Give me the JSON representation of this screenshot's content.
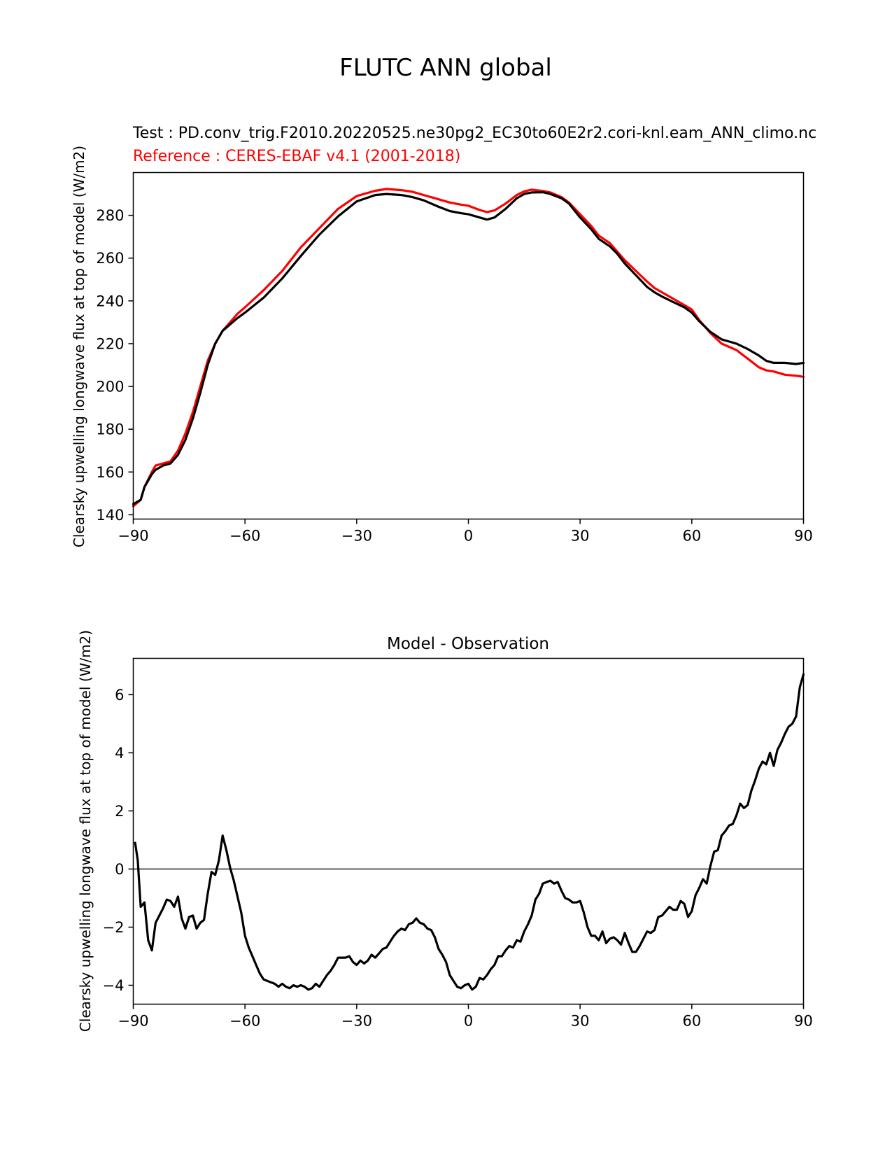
{
  "suptitle": "FLUTC ANN global",
  "chart_data": [
    {
      "type": "line",
      "title_test": "Test : PD.conv_trig.F2010.20220525.ne30pg2_EC30to60E2r2.cori-knl.eam_ANN_climo.nc",
      "title_ref": "Reference : CERES-EBAF v4.1 (2001-2018)",
      "ylabel": "Clearsky upwelling longwave flux at top of model (W/m2)",
      "xlabel": "",
      "xlim": [
        -90,
        90
      ],
      "ylim": [
        138,
        300
      ],
      "xticks": [
        -90,
        -60,
        -30,
        0,
        30,
        60,
        90
      ],
      "xtick_labels": [
        "−90",
        "−60",
        "−30",
        "0",
        "30",
        "60",
        "90"
      ],
      "yticks": [
        140,
        160,
        180,
        200,
        220,
        240,
        260,
        280
      ],
      "ytick_labels": [
        "140",
        "160",
        "180",
        "200",
        "220",
        "240",
        "260",
        "280"
      ],
      "grid": false,
      "series": [
        {
          "color": "#ff0000",
          "x": [
            -90,
            -88,
            -87,
            -85,
            -84,
            -82,
            -80,
            -78,
            -76,
            -74,
            -72,
            -70,
            -68,
            -66,
            -64,
            -62,
            -60,
            -55,
            -50,
            -45,
            -40,
            -35,
            -30,
            -25,
            -22,
            -18,
            -15,
            -12,
            -8,
            -5,
            -2,
            0,
            3,
            5,
            7,
            10,
            13,
            15,
            17,
            20,
            22,
            25,
            27,
            30,
            33,
            35,
            38,
            40,
            42,
            45,
            48,
            50,
            52,
            55,
            58,
            60,
            62,
            65,
            68,
            70,
            72,
            75,
            78,
            80,
            82,
            85,
            88,
            90
          ],
          "y": [
            144,
            147,
            153,
            160,
            163,
            164,
            165,
            170,
            178,
            188,
            200,
            212,
            220,
            226,
            230,
            234,
            237,
            245,
            254,
            265,
            274,
            283,
            289,
            291.5,
            292.3,
            291.8,
            291,
            289.5,
            287.5,
            286,
            285,
            284.5,
            282.5,
            281.5,
            282.3,
            285.5,
            289.5,
            291.2,
            292,
            291.4,
            290.7,
            288.5,
            286,
            280.5,
            275,
            270.5,
            267,
            263,
            259,
            254,
            249,
            246,
            244,
            241,
            238,
            236,
            231,
            225,
            220,
            218.5,
            217,
            213,
            209,
            207.5,
            207,
            205.5,
            205,
            204.5
          ]
        },
        {
          "color": "#000000",
          "x": [
            -90,
            -88,
            -87,
            -85,
            -84,
            -82,
            -80,
            -78,
            -76,
            -74,
            -72,
            -70,
            -68,
            -66,
            -64,
            -62,
            -60,
            -55,
            -50,
            -45,
            -40,
            -35,
            -30,
            -25,
            -22,
            -18,
            -15,
            -12,
            -8,
            -5,
            -2,
            0,
            3,
            5,
            7,
            10,
            13,
            15,
            17,
            20,
            22,
            25,
            27,
            30,
            33,
            35,
            38,
            40,
            42,
            45,
            48,
            50,
            52,
            55,
            58,
            60,
            62,
            65,
            68,
            70,
            72,
            75,
            78,
            80,
            82,
            85,
            88,
            90
          ],
          "y": [
            145,
            147,
            153,
            159,
            161,
            163,
            164,
            168,
            175,
            185,
            197,
            210,
            220,
            226,
            229,
            232,
            234.5,
            241.5,
            250.5,
            261,
            271,
            279.5,
            286.5,
            289.5,
            290,
            289.5,
            288.5,
            287,
            284,
            282,
            281,
            280.5,
            279,
            278,
            279,
            283,
            288,
            290,
            290.7,
            290.8,
            290,
            288,
            285.5,
            279,
            273.5,
            269,
            265.5,
            262,
            257.5,
            252,
            246.5,
            244,
            242,
            239.5,
            237,
            234.5,
            230.5,
            225.5,
            222,
            221,
            220,
            217.5,
            214.5,
            212,
            211,
            211,
            210.5,
            211
          ]
        }
      ]
    },
    {
      "type": "line",
      "title": "Model - Observation",
      "ylabel": "Clearsky upwelling longwave flux at top of model (W/m2)",
      "xlabel": "",
      "xlim": [
        -90,
        90
      ],
      "ylim": [
        -4.65,
        7.25
      ],
      "xticks": [
        -90,
        -60,
        -30,
        0,
        30,
        60,
        90
      ],
      "xtick_labels": [
        "−90",
        "−60",
        "−30",
        "0",
        "30",
        "60",
        "90"
      ],
      "yticks": [
        -4,
        -2,
        0,
        2,
        4,
        6
      ],
      "ytick_labels": [
        "−4",
        "−2",
        "0",
        "2",
        "4",
        "6"
      ],
      "grid": false,
      "zero_line_color": "#808080",
      "series": [
        {
          "color": "#000000",
          "x": [
            -89.5,
            -88.8,
            -88,
            -87,
            -86,
            -85,
            -84,
            -83,
            -82,
            -81,
            -80,
            -79,
            -78,
            -77,
            -76,
            -75,
            -74,
            -73,
            -72,
            -71,
            -70,
            -69,
            -68,
            -67,
            -66,
            -65,
            -64,
            -63,
            -62,
            -61,
            -60,
            -59,
            -58,
            -57,
            -56,
            -55,
            -54,
            -53,
            -52,
            -51,
            -50,
            -49,
            -48,
            -47,
            -46,
            -45,
            -44,
            -43,
            -42,
            -41,
            -40,
            -39,
            -38,
            -37,
            -36,
            -35,
            -34,
            -33,
            -32,
            -31,
            -30,
            -29,
            -28,
            -27,
            -26,
            -25,
            -24,
            -23,
            -22,
            -21,
            -20,
            -19,
            -18,
            -17,
            -16,
            -15,
            -14,
            -13,
            -12,
            -11,
            -10,
            -9,
            -8,
            -7,
            -6,
            -5,
            -4,
            -3,
            -2,
            -1,
            0,
            1,
            2,
            3,
            4,
            5,
            6,
            7,
            8,
            9,
            10,
            11,
            12,
            13,
            14,
            15,
            16,
            17,
            18,
            19,
            20,
            21,
            22,
            23,
            24,
            25,
            26,
            27,
            28,
            29,
            30,
            31,
            32,
            33,
            34,
            35,
            36,
            37,
            38,
            39,
            40,
            41,
            42,
            43,
            44,
            45,
            46,
            47,
            48,
            49,
            50,
            51,
            52,
            53,
            54,
            55,
            56,
            57,
            58,
            59,
            60,
            61,
            62,
            63,
            64,
            65,
            66,
            67,
            68,
            69,
            70,
            71,
            72,
            73,
            74,
            75,
            76,
            77,
            78,
            79,
            80,
            81,
            82,
            83,
            84,
            85,
            86,
            87,
            88,
            89,
            90
          ],
          "y": [
            0.9,
            0.3,
            -1.3,
            -1.15,
            -2.45,
            -2.8,
            -1.85,
            -1.6,
            -1.35,
            -1.05,
            -1.1,
            -1.3,
            -0.95,
            -1.7,
            -2.05,
            -1.65,
            -1.6,
            -2.05,
            -1.85,
            -1.75,
            -0.85,
            -0.1,
            -0.2,
            0.3,
            1.15,
            0.65,
            0.05,
            -0.4,
            -0.95,
            -1.5,
            -2.3,
            -2.7,
            -3.0,
            -3.3,
            -3.6,
            -3.8,
            -3.85,
            -3.9,
            -3.95,
            -4.05,
            -3.95,
            -4.05,
            -4.1,
            -4.0,
            -4.05,
            -4.0,
            -4.05,
            -4.15,
            -4.1,
            -3.95,
            -4.05,
            -3.85,
            -3.65,
            -3.5,
            -3.3,
            -3.05,
            -3.05,
            -3.05,
            -3.0,
            -3.2,
            -3.3,
            -3.15,
            -3.25,
            -3.15,
            -2.95,
            -3.05,
            -2.9,
            -2.75,
            -2.7,
            -2.5,
            -2.3,
            -2.15,
            -2.05,
            -2.1,
            -1.9,
            -1.85,
            -1.7,
            -1.85,
            -1.9,
            -2.05,
            -2.1,
            -2.35,
            -2.75,
            -2.95,
            -3.2,
            -3.65,
            -3.85,
            -4.05,
            -4.1,
            -4.0,
            -3.95,
            -4.15,
            -4.05,
            -3.75,
            -3.8,
            -3.65,
            -3.45,
            -3.3,
            -3.0,
            -3.0,
            -2.8,
            -2.65,
            -2.7,
            -2.45,
            -2.5,
            -2.15,
            -1.9,
            -1.6,
            -1.05,
            -0.85,
            -0.5,
            -0.45,
            -0.4,
            -0.5,
            -0.45,
            -0.75,
            -1.0,
            -1.05,
            -1.15,
            -1.15,
            -1.1,
            -1.5,
            -2.0,
            -2.3,
            -2.3,
            -2.45,
            -2.15,
            -2.55,
            -2.4,
            -2.35,
            -2.45,
            -2.6,
            -2.2,
            -2.55,
            -2.85,
            -2.85,
            -2.65,
            -2.4,
            -2.15,
            -2.2,
            -2.1,
            -1.65,
            -1.6,
            -1.45,
            -1.3,
            -1.4,
            -1.4,
            -1.1,
            -1.2,
            -1.65,
            -1.45,
            -0.9,
            -0.65,
            -0.35,
            -0.5,
            0.1,
            0.6,
            0.65,
            1.15,
            1.3,
            1.5,
            1.55,
            1.85,
            2.25,
            2.1,
            2.2,
            2.7,
            3.05,
            3.45,
            3.7,
            3.6,
            4.0,
            3.55,
            4.1,
            4.35,
            4.65,
            4.9,
            5.0,
            5.25,
            6.25,
            6.7
          ]
        }
      ]
    }
  ]
}
